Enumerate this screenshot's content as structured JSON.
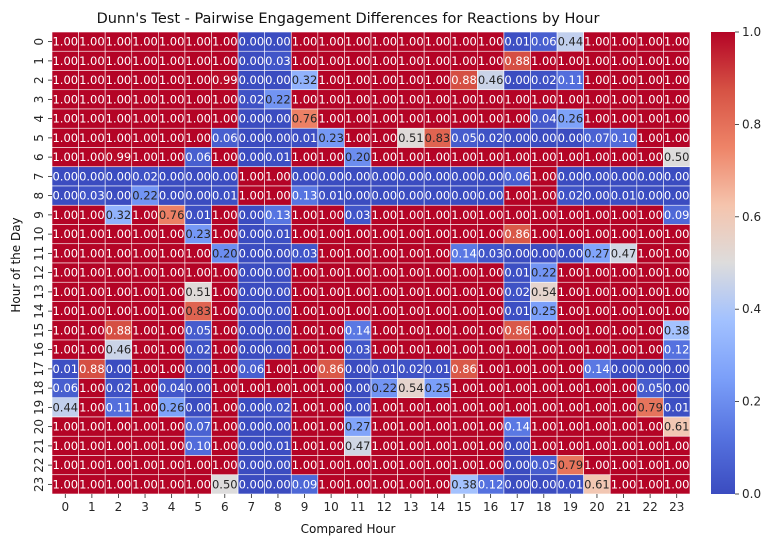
{
  "chart_data": {
    "type": "heatmap",
    "title": "Dunn's Test - Pairwise Engagement Differences for Reactions by Hour",
    "xlabel": "Compared Hour",
    "ylabel": "Hour of the Day",
    "x_categories": [
      "0",
      "1",
      "2",
      "3",
      "4",
      "5",
      "6",
      "7",
      "8",
      "9",
      "10",
      "11",
      "12",
      "13",
      "14",
      "15",
      "16",
      "17",
      "18",
      "19",
      "20",
      "21",
      "22",
      "23"
    ],
    "y_categories": [
      "0",
      "1",
      "2",
      "3",
      "4",
      "5",
      "6",
      "7",
      "8",
      "9",
      "10",
      "11",
      "12",
      "13",
      "14",
      "15",
      "16",
      "17",
      "18",
      "19",
      "20",
      "21",
      "22",
      "23"
    ],
    "colormap": "coolwarm",
    "colorbar_range": [
      0.0,
      1.0
    ],
    "colorbar_ticks": [
      "0.0",
      "0.2",
      "0.4",
      "0.6",
      "0.8",
      "1.0"
    ],
    "annotation_format": ".2f",
    "values": [
      [
        1.0,
        1.0,
        1.0,
        1.0,
        1.0,
        1.0,
        1.0,
        0.0,
        0.0,
        1.0,
        1.0,
        1.0,
        1.0,
        1.0,
        1.0,
        1.0,
        1.0,
        0.01,
        0.06,
        0.44,
        1.0,
        1.0,
        1.0,
        1.0
      ],
      [
        1.0,
        1.0,
        1.0,
        1.0,
        1.0,
        1.0,
        1.0,
        0.0,
        0.03,
        1.0,
        1.0,
        1.0,
        1.0,
        1.0,
        1.0,
        1.0,
        1.0,
        0.88,
        1.0,
        1.0,
        1.0,
        1.0,
        1.0,
        1.0
      ],
      [
        1.0,
        1.0,
        1.0,
        1.0,
        1.0,
        1.0,
        0.99,
        0.0,
        0.0,
        0.32,
        1.0,
        1.0,
        1.0,
        1.0,
        1.0,
        0.88,
        0.46,
        0.0,
        0.02,
        0.11,
        1.0,
        1.0,
        1.0,
        1.0
      ],
      [
        1.0,
        1.0,
        1.0,
        1.0,
        1.0,
        1.0,
        1.0,
        0.02,
        0.22,
        1.0,
        1.0,
        1.0,
        1.0,
        1.0,
        1.0,
        1.0,
        1.0,
        1.0,
        1.0,
        1.0,
        1.0,
        1.0,
        1.0,
        1.0
      ],
      [
        1.0,
        1.0,
        1.0,
        1.0,
        1.0,
        1.0,
        1.0,
        0.0,
        0.0,
        0.76,
        1.0,
        1.0,
        1.0,
        1.0,
        1.0,
        1.0,
        1.0,
        1.0,
        0.04,
        0.26,
        1.0,
        1.0,
        1.0,
        1.0
      ],
      [
        1.0,
        1.0,
        1.0,
        1.0,
        1.0,
        1.0,
        0.06,
        0.0,
        0.0,
        0.01,
        0.23,
        1.0,
        1.0,
        0.51,
        0.83,
        0.05,
        0.02,
        0.0,
        0.0,
        0.0,
        0.07,
        0.1,
        1.0,
        1.0
      ],
      [
        1.0,
        1.0,
        0.99,
        1.0,
        1.0,
        0.06,
        1.0,
        0.0,
        0.01,
        1.0,
        1.0,
        0.2,
        1.0,
        1.0,
        1.0,
        1.0,
        1.0,
        1.0,
        1.0,
        1.0,
        1.0,
        1.0,
        1.0,
        0.5
      ],
      [
        0.0,
        0.0,
        0.0,
        0.02,
        0.0,
        0.0,
        0.0,
        1.0,
        1.0,
        0.0,
        0.0,
        0.0,
        0.0,
        0.0,
        0.0,
        0.0,
        0.0,
        0.06,
        1.0,
        0.0,
        0.0,
        0.0,
        0.0,
        0.0
      ],
      [
        0.0,
        0.03,
        0.0,
        0.22,
        0.0,
        0.0,
        0.01,
        1.0,
        1.0,
        0.13,
        0.01,
        0.0,
        0.0,
        0.0,
        0.0,
        0.0,
        0.0,
        1.0,
        1.0,
        0.02,
        0.0,
        0.01,
        0.0,
        0.0
      ],
      [
        1.0,
        1.0,
        0.32,
        1.0,
        0.76,
        0.01,
        1.0,
        0.0,
        0.13,
        1.0,
        1.0,
        0.03,
        1.0,
        1.0,
        1.0,
        1.0,
        1.0,
        1.0,
        1.0,
        1.0,
        1.0,
        1.0,
        1.0,
        0.09
      ],
      [
        1.0,
        1.0,
        1.0,
        1.0,
        1.0,
        0.23,
        1.0,
        0.0,
        0.01,
        1.0,
        1.0,
        1.0,
        1.0,
        1.0,
        1.0,
        1.0,
        1.0,
        0.86,
        1.0,
        1.0,
        1.0,
        1.0,
        1.0,
        1.0
      ],
      [
        1.0,
        1.0,
        1.0,
        1.0,
        1.0,
        1.0,
        0.2,
        0.0,
        0.0,
        0.03,
        1.0,
        1.0,
        1.0,
        1.0,
        1.0,
        0.14,
        0.03,
        0.0,
        0.0,
        0.0,
        0.27,
        0.47,
        1.0,
        1.0
      ],
      [
        1.0,
        1.0,
        1.0,
        1.0,
        1.0,
        1.0,
        1.0,
        0.0,
        0.0,
        1.0,
        1.0,
        1.0,
        1.0,
        1.0,
        1.0,
        1.0,
        1.0,
        0.01,
        0.22,
        1.0,
        1.0,
        1.0,
        1.0,
        1.0
      ],
      [
        1.0,
        1.0,
        1.0,
        1.0,
        1.0,
        0.51,
        1.0,
        0.0,
        0.0,
        1.0,
        1.0,
        1.0,
        1.0,
        1.0,
        1.0,
        1.0,
        1.0,
        0.02,
        0.54,
        1.0,
        1.0,
        1.0,
        1.0,
        1.0
      ],
      [
        1.0,
        1.0,
        1.0,
        1.0,
        1.0,
        0.83,
        1.0,
        0.0,
        0.0,
        1.0,
        1.0,
        1.0,
        1.0,
        1.0,
        1.0,
        1.0,
        1.0,
        0.01,
        0.25,
        1.0,
        1.0,
        1.0,
        1.0,
        1.0
      ],
      [
        1.0,
        1.0,
        0.88,
        1.0,
        1.0,
        0.05,
        1.0,
        0.0,
        0.0,
        1.0,
        1.0,
        0.14,
        1.0,
        1.0,
        1.0,
        1.0,
        1.0,
        0.86,
        1.0,
        1.0,
        1.0,
        1.0,
        1.0,
        0.38
      ],
      [
        1.0,
        1.0,
        0.46,
        1.0,
        1.0,
        0.02,
        1.0,
        0.0,
        0.0,
        1.0,
        1.0,
        0.03,
        1.0,
        1.0,
        1.0,
        1.0,
        1.0,
        1.0,
        1.0,
        1.0,
        1.0,
        1.0,
        1.0,
        0.12
      ],
      [
        0.01,
        0.88,
        0.0,
        1.0,
        1.0,
        0.0,
        1.0,
        0.06,
        1.0,
        1.0,
        0.86,
        0.0,
        0.01,
        0.02,
        0.01,
        0.86,
        1.0,
        1.0,
        1.0,
        1.0,
        0.14,
        0.0,
        0.0,
        0.0
      ],
      [
        0.06,
        1.0,
        0.02,
        1.0,
        0.04,
        0.0,
        1.0,
        1.0,
        1.0,
        1.0,
        1.0,
        0.0,
        0.22,
        0.54,
        0.25,
        1.0,
        1.0,
        1.0,
        1.0,
        1.0,
        1.0,
        1.0,
        0.05,
        0.0
      ],
      [
        0.44,
        1.0,
        0.11,
        1.0,
        0.26,
        0.0,
        1.0,
        0.0,
        0.02,
        1.0,
        1.0,
        0.0,
        1.0,
        1.0,
        1.0,
        1.0,
        1.0,
        1.0,
        1.0,
        1.0,
        1.0,
        1.0,
        0.79,
        0.01
      ],
      [
        1.0,
        1.0,
        1.0,
        1.0,
        1.0,
        0.07,
        1.0,
        0.0,
        0.0,
        1.0,
        1.0,
        0.27,
        1.0,
        1.0,
        1.0,
        1.0,
        1.0,
        0.14,
        1.0,
        1.0,
        1.0,
        1.0,
        1.0,
        0.61
      ],
      [
        1.0,
        1.0,
        1.0,
        1.0,
        1.0,
        0.1,
        1.0,
        0.0,
        0.01,
        1.0,
        1.0,
        0.47,
        1.0,
        1.0,
        1.0,
        1.0,
        1.0,
        0.0,
        1.0,
        1.0,
        1.0,
        1.0,
        1.0,
        1.0
      ],
      [
        1.0,
        1.0,
        1.0,
        1.0,
        1.0,
        1.0,
        1.0,
        0.0,
        0.0,
        1.0,
        1.0,
        1.0,
        1.0,
        1.0,
        1.0,
        1.0,
        1.0,
        0.0,
        0.05,
        0.79,
        1.0,
        1.0,
        1.0,
        1.0
      ],
      [
        1.0,
        1.0,
        1.0,
        1.0,
        1.0,
        1.0,
        0.5,
        0.0,
        0.0,
        0.09,
        1.0,
        1.0,
        1.0,
        1.0,
        1.0,
        0.38,
        0.12,
        0.0,
        0.0,
        0.01,
        0.61,
        1.0,
        1.0,
        1.0
      ]
    ]
  }
}
